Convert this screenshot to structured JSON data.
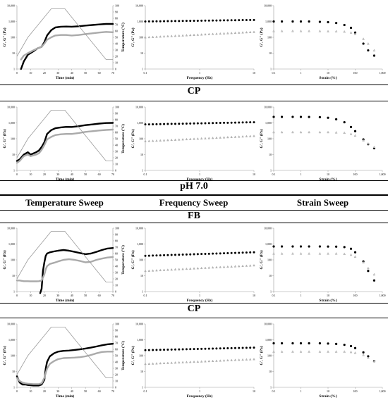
{
  "headers": {
    "cp_1": "CP",
    "ph": "pH 7.0",
    "col_temperature": "Temperature Sweep",
    "col_frequency": "Frequency Sweep",
    "col_strain": "Strain Sweep",
    "fb": "FB",
    "cp_2": "CP"
  },
  "chart_data": [
    {
      "id": "r1-temp",
      "type": "line",
      "xlabel": "Time (min)",
      "ylabel": "G', G'' (Pa)",
      "y2label": "Temperature (°C)",
      "xticks": [
        "0",
        "10",
        "20",
        "30",
        "40",
        "50",
        "60",
        "70"
      ],
      "xlim": [
        0,
        70
      ],
      "yticks": [
        "1",
        "10",
        "100",
        "1,000",
        "10,000"
      ],
      "ylog": true,
      "y2ticks": [
        "0",
        "10",
        "20",
        "30",
        "40",
        "50",
        "60",
        "70",
        "80",
        "90",
        "100"
      ],
      "y2lim": [
        0,
        100
      ],
      "series": [
        {
          "role": "G'",
          "x": [
            3,
            5,
            8,
            12,
            15,
            18,
            20,
            22,
            25,
            28,
            32,
            36,
            40,
            45,
            50,
            55,
            60,
            65,
            70
          ],
          "y": [
            1,
            3,
            8,
            13,
            20,
            25,
            50,
            130,
            280,
            420,
            470,
            480,
            470,
            500,
            550,
            600,
            650,
            700,
            700
          ]
        },
        {
          "role": "G''",
          "x": [
            3,
            5,
            8,
            12,
            15,
            18,
            20,
            22,
            25,
            28,
            32,
            36,
            40,
            45,
            50,
            55,
            60,
            65,
            70
          ],
          "y": [
            4,
            7,
            10,
            15,
            20,
            25,
            40,
            70,
            100,
            130,
            140,
            140,
            130,
            140,
            160,
            180,
            200,
            220,
            210
          ]
        },
        {
          "role": "Temperature",
          "x": [
            0,
            8,
            25,
            35,
            65,
            70
          ],
          "y": [
            20,
            50,
            95,
            95,
            15,
            15
          ]
        }
      ]
    },
    {
      "id": "r1-freq",
      "type": "scatter",
      "xlabel": "Frequency (Hz)",
      "ylabel": "G', G'' (Pa)",
      "xticks": [
        "0.1",
        "1",
        "10"
      ],
      "xlim": [
        0.1,
        10
      ],
      "xlog": true,
      "yticks": [
        "1",
        "10",
        "100",
        "1,000",
        "10,000"
      ],
      "ylog": true,
      "series": [
        {
          "role": "G'",
          "x0": 0.1,
          "x1": 10,
          "y0": 1000,
          "y1": 1250
        },
        {
          "role": "G''",
          "x0": 0.1,
          "x1": 10,
          "y0": 100,
          "y1": 220
        }
      ]
    },
    {
      "id": "r1-strain",
      "type": "scatter",
      "xlabel": "Strain (%)",
      "ylabel": "G', G'' (Pa)",
      "xticks": [
        "0.1",
        "1",
        "10",
        "100",
        "1,000"
      ],
      "xlim": [
        0.1,
        1000
      ],
      "xlog": true,
      "yticks": [
        "1",
        "10",
        "100",
        "1,000",
        "10,000"
      ],
      "ylog": true,
      "series": [
        {
          "role": "G'",
          "x": [
            0.1,
            0.2,
            0.5,
            1,
            2,
            5,
            10,
            20,
            40,
            70,
            100,
            200,
            300,
            500
          ],
          "y": [
            1000,
            1000,
            1000,
            1000,
            1000,
            950,
            900,
            800,
            600,
            400,
            200,
            40,
            15,
            7
          ]
        },
        {
          "role": "G''",
          "x": [
            0.1,
            0.2,
            0.5,
            1,
            2,
            5,
            10,
            20,
            40,
            70,
            100,
            200,
            300,
            500
          ],
          "y": [
            250,
            250,
            250,
            250,
            250,
            250,
            240,
            240,
            230,
            200,
            160,
            80,
            40,
            15
          ]
        }
      ]
    },
    {
      "id": "r2-temp",
      "type": "line",
      "xlabel": "Time (min)",
      "ylabel": "G', G'' (Pa)",
      "y2label": "Temperature (°C)",
      "xticks": [
        "0",
        "10",
        "20",
        "30",
        "40",
        "50",
        "60",
        "70"
      ],
      "xlim": [
        0,
        70
      ],
      "yticks": [
        "1",
        "10",
        "100",
        "1,000",
        "10,000"
      ],
      "ylog": true,
      "y2ticks": [
        "0",
        "10",
        "20",
        "30",
        "40",
        "50",
        "60",
        "70",
        "80",
        "90",
        "100"
      ],
      "y2lim": [
        0,
        100
      ],
      "series": [
        {
          "role": "G'",
          "x": [
            0,
            2,
            5,
            8,
            10,
            14,
            16,
            18,
            20,
            22,
            25,
            28,
            32,
            36,
            40,
            45,
            50,
            55,
            60,
            65,
            70
          ],
          "y": [
            4,
            5,
            10,
            14,
            10,
            14,
            18,
            30,
            60,
            200,
            350,
            460,
            520,
            560,
            550,
            620,
            720,
            800,
            900,
            980,
            1000
          ]
        },
        {
          "role": "G''",
          "x": [
            0,
            2,
            5,
            8,
            10,
            14,
            16,
            18,
            20,
            22,
            25,
            28,
            32,
            36,
            40,
            45,
            50,
            55,
            60,
            65,
            70
          ],
          "y": [
            3,
            4,
            8,
            10,
            8,
            10,
            12,
            20,
            40,
            90,
            130,
            170,
            190,
            200,
            200,
            230,
            270,
            300,
            330,
            360,
            380
          ]
        },
        {
          "role": "Temperature",
          "x": [
            0,
            8,
            25,
            35,
            65,
            70
          ],
          "y": [
            20,
            50,
            95,
            95,
            15,
            15
          ]
        }
      ]
    },
    {
      "id": "r2-freq",
      "type": "scatter",
      "xlabel": "Frequency (Hz)",
      "ylabel": "G', G'' (Pa)",
      "xticks": [
        "0.1",
        "1",
        "10"
      ],
      "xlim": [
        0.1,
        10
      ],
      "xlog": true,
      "yticks": [
        "1",
        "10",
        "100",
        "1,000",
        "10,000"
      ],
      "ylog": true,
      "series": [
        {
          "role": "G'",
          "x0": 0.1,
          "x1": 10,
          "y0": 800,
          "y1": 1100
        },
        {
          "role": "G''",
          "x0": 0.1,
          "x1": 10,
          "y0": 70,
          "y1": 150
        }
      ]
    },
    {
      "id": "r2-strain",
      "type": "scatter",
      "xlabel": "Strain (%)",
      "ylabel": "G', G'' (Pa)",
      "xticks": [
        "0.1",
        "1",
        "10",
        "100",
        "1,000"
      ],
      "xlim": [
        0.1,
        1000
      ],
      "xlog": true,
      "yticks": [
        "1",
        "10",
        "100",
        "1,000",
        "10,000"
      ],
      "ylog": true,
      "series": [
        {
          "role": "G'",
          "x": [
            0.1,
            0.2,
            0.5,
            1,
            2,
            5,
            10,
            20,
            40,
            70,
            100,
            200,
            300,
            500
          ],
          "y": [
            2400,
            2400,
            2400,
            2400,
            2350,
            2300,
            2100,
            1700,
            1100,
            550,
            300,
            90,
            45,
            25
          ]
        },
        {
          "role": "G''",
          "x": [
            0.1,
            0.2,
            0.5,
            1,
            2,
            5,
            10,
            20,
            40,
            70,
            100,
            200,
            300,
            500
          ],
          "y": [
            260,
            260,
            260,
            260,
            260,
            260,
            260,
            250,
            240,
            200,
            160,
            80,
            50,
            30
          ]
        }
      ]
    },
    {
      "id": "r3-temp",
      "type": "line",
      "xlabel": "Time (min)",
      "ylabel": "G', G'' (Pa)",
      "y2label": "Temperature (°C)",
      "xticks": [
        "0",
        "10",
        "20",
        "30",
        "40",
        "50",
        "60",
        "70"
      ],
      "xlim": [
        0,
        70
      ],
      "yticks": [
        "1",
        "10",
        "100",
        "1,000",
        "10,000"
      ],
      "ylog": true,
      "y2ticks": [
        "0",
        "10",
        "20",
        "30",
        "40",
        "50",
        "60",
        "70",
        "80",
        "90",
        "100"
      ],
      "y2lim": [
        0,
        100
      ],
      "series": [
        {
          "role": "G'",
          "x": [
            17,
            18,
            19,
            20,
            21,
            22,
            24,
            27,
            30,
            34,
            38,
            42,
            46,
            50,
            54,
            58,
            62,
            66,
            70
          ],
          "y": [
            0.8,
            1.5,
            20,
            70,
            180,
            250,
            300,
            340,
            380,
            420,
            380,
            320,
            270,
            230,
            250,
            320,
            420,
            520,
            560
          ]
        },
        {
          "role": "G''",
          "x": [
            0,
            2,
            5,
            8,
            10,
            14,
            16,
            18,
            20,
            21,
            22,
            24,
            27,
            30,
            34,
            38,
            42,
            46,
            50,
            54,
            58,
            62,
            66,
            70
          ],
          "y": [
            5,
            5,
            4.5,
            4.5,
            4.4,
            4.4,
            4.5,
            5,
            12,
            25,
            40,
            55,
            65,
            80,
            100,
            110,
            100,
            85,
            70,
            75,
            100,
            120,
            140,
            150
          ]
        },
        {
          "role": "Temperature",
          "x": [
            0,
            8,
            25,
            35,
            65,
            70
          ],
          "y": [
            20,
            50,
            95,
            95,
            15,
            15
          ]
        }
      ]
    },
    {
      "id": "r3-freq",
      "type": "scatter",
      "xlabel": "Frequency (Hz)",
      "ylabel": "G', G'' (Pa)",
      "xticks": [
        "0.1",
        "1",
        "10"
      ],
      "xlim": [
        0.1,
        10
      ],
      "xlog": true,
      "yticks": [
        "1",
        "10",
        "100",
        "1,000",
        "10,000"
      ],
      "ylog": true,
      "series": [
        {
          "role": "G'",
          "x0": 0.1,
          "x1": 10,
          "y0": 180,
          "y1": 300
        },
        {
          "role": "G''",
          "x0": 0.1,
          "x1": 10,
          "y0": 20,
          "y1": 45
        }
      ]
    },
    {
      "id": "r3-strain",
      "type": "scatter",
      "xlabel": "Strain (%)",
      "ylabel": "G', G'' (Pa)",
      "xticks": [
        "0.1",
        "1",
        "10",
        "100",
        "1,000"
      ],
      "xlim": [
        0.1,
        1000
      ],
      "xlog": true,
      "yticks": [
        "1",
        "10",
        "100",
        "1,000",
        "10,000"
      ],
      "ylog": true,
      "series": [
        {
          "role": "G'",
          "x": [
            0.1,
            0.2,
            0.5,
            1,
            2,
            5,
            10,
            20,
            40,
            70,
            100,
            200,
            300,
            500
          ],
          "y": [
            700,
            700,
            700,
            700,
            700,
            700,
            690,
            680,
            640,
            500,
            300,
            80,
            20,
            5
          ]
        },
        {
          "role": "G''",
          "x": [
            0.1,
            0.2,
            0.5,
            1,
            2,
            5,
            10,
            20,
            40,
            70,
            100,
            200,
            300,
            500
          ],
          "y": [
            250,
            250,
            250,
            250,
            250,
            250,
            250,
            250,
            240,
            210,
            160,
            70,
            30,
            12
          ]
        }
      ]
    },
    {
      "id": "r4-temp",
      "type": "line",
      "xlabel": "Time (min)",
      "ylabel": "G', G'' (Pa)",
      "y2label": "Temperature (°C)",
      "xticks": [
        "0",
        "10",
        "20",
        "30",
        "40",
        "50",
        "60",
        "70"
      ],
      "xlim": [
        0,
        70
      ],
      "yticks": [
        "1",
        "10",
        "100",
        "1,000",
        "10,000"
      ],
      "ylog": true,
      "y2ticks": [
        "0",
        "10",
        "20",
        "30",
        "40",
        "50",
        "60",
        "70",
        "80",
        "90",
        "100"
      ],
      "y2lim": [
        0,
        100
      ],
      "series": [
        {
          "role": "G'",
          "x": [
            0,
            2,
            4,
            6,
            8,
            12,
            16,
            18,
            20,
            21,
            22,
            24,
            27,
            30,
            34,
            38,
            42,
            46,
            50,
            54,
            58,
            62,
            66,
            70
          ],
          "y": [
            5,
            2,
            1.5,
            1.5,
            1.4,
            1.3,
            1.3,
            1.5,
            3,
            15,
            40,
            90,
            140,
            180,
            200,
            210,
            230,
            250,
            280,
            320,
            380,
            450,
            520,
            560
          ]
        },
        {
          "role": "G''",
          "x": [
            0,
            2,
            4,
            6,
            8,
            12,
            16,
            18,
            20,
            22,
            24,
            27,
            30,
            34,
            38,
            42,
            46,
            50,
            54,
            58,
            62,
            66,
            70
          ],
          "y": [
            4,
            2.5,
            2,
            1.8,
            1.7,
            1.6,
            1.6,
            1.8,
            4,
            15,
            30,
            45,
            60,
            70,
            72,
            75,
            80,
            90,
            110,
            140,
            170,
            180,
            180
          ]
        },
        {
          "role": "Temperature",
          "x": [
            0,
            8,
            25,
            35,
            65,
            70
          ],
          "y": [
            20,
            50,
            95,
            95,
            15,
            15
          ]
        }
      ]
    },
    {
      "id": "r4-freq",
      "type": "scatter",
      "xlabel": "Frequency (Hz)",
      "ylabel": "G', G'' (Pa)",
      "xticks": [
        "0.1",
        "1",
        "10"
      ],
      "xlim": [
        0.1,
        10
      ],
      "xlog": true,
      "yticks": [
        "1",
        "10",
        "100",
        "1,000",
        "10,000"
      ],
      "ylog": true,
      "series": [
        {
          "role": "G'",
          "x0": 0.1,
          "x1": 10,
          "y0": 220,
          "y1": 320
        },
        {
          "role": "G''",
          "x0": 0.1,
          "x1": 10,
          "y0": 30,
          "y1": 60
        }
      ]
    },
    {
      "id": "r4-strain",
      "type": "scatter",
      "xlabel": "Strain (%)",
      "ylabel": "G', G'' (Pa)",
      "xticks": [
        "0.1",
        "1",
        "10",
        "100",
        "1,000"
      ],
      "xlim": [
        0.1,
        1000
      ],
      "xlog": true,
      "yticks": [
        "1",
        "10",
        "100",
        "1,000",
        "10,000"
      ],
      "ylog": true,
      "series": [
        {
          "role": "G'",
          "x": [
            0.1,
            0.2,
            0.5,
            1,
            2,
            5,
            10,
            20,
            40,
            70,
            100,
            200,
            300,
            500
          ],
          "y": [
            600,
            600,
            600,
            600,
            600,
            600,
            580,
            550,
            480,
            400,
            300,
            160,
            90,
            45
          ]
        },
        {
          "role": "G''",
          "x": [
            0.1,
            0.2,
            0.5,
            1,
            2,
            5,
            10,
            20,
            40,
            70,
            100,
            200,
            300,
            500
          ],
          "y": [
            180,
            180,
            180,
            180,
            180,
            180,
            180,
            180,
            180,
            170,
            150,
            110,
            75,
            45
          ]
        }
      ]
    }
  ]
}
